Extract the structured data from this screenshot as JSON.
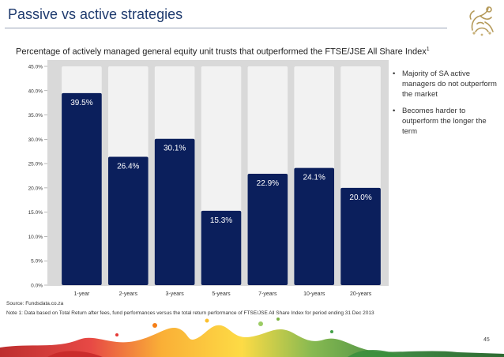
{
  "slide": {
    "title": "Passive vs active strategies",
    "subtitle": "Percentage of actively managed general equity unit trusts that outperformed the FTSE/JSE All Share Index",
    "subtitle_note_marker": "1",
    "bullets": [
      "Majority of SA active managers do not outperform the market",
      "Becomes harder to outperform the longer the term"
    ],
    "source": "Source: Fundsdata.co.za",
    "note": "Note 1: Data based on Total Return after fees, fund performances versus the total return performance of FTSE/JSE All Share Index for period ending 31 Dec 2013",
    "page_number": "45",
    "logo_icon": "heraldic-lion-crest-icon"
  },
  "colors": {
    "title": "#1e3a6e",
    "bar": "#0b1f5c",
    "column_background": "#f2f2f2",
    "panel_background": "#d9d9d9",
    "bar_label": "#ffffff"
  },
  "chart_data": {
    "type": "bar",
    "categories": [
      "1-year",
      "2-years",
      "3-years",
      "5-years",
      "7-years",
      "10-years",
      "20-years"
    ],
    "values": [
      39.5,
      26.4,
      30.1,
      15.3,
      22.9,
      24.1,
      20.0
    ],
    "data_labels": [
      "39.5%",
      "26.4%",
      "30.1%",
      "15.3%",
      "22.9%",
      "24.1%",
      "20.0%"
    ],
    "y_ticks": [
      0,
      5,
      10,
      15,
      20,
      25,
      30,
      35,
      40,
      45
    ],
    "y_tick_labels": [
      "0.0%",
      "5.0%",
      "10.0%",
      "15.0%",
      "20.0%",
      "25.0%",
      "30.0%",
      "35.0%",
      "40.0%",
      "45.0%"
    ],
    "ylim": [
      0,
      45
    ],
    "title": "",
    "xlabel": "",
    "ylabel": "",
    "grid": false,
    "legend": "none"
  }
}
